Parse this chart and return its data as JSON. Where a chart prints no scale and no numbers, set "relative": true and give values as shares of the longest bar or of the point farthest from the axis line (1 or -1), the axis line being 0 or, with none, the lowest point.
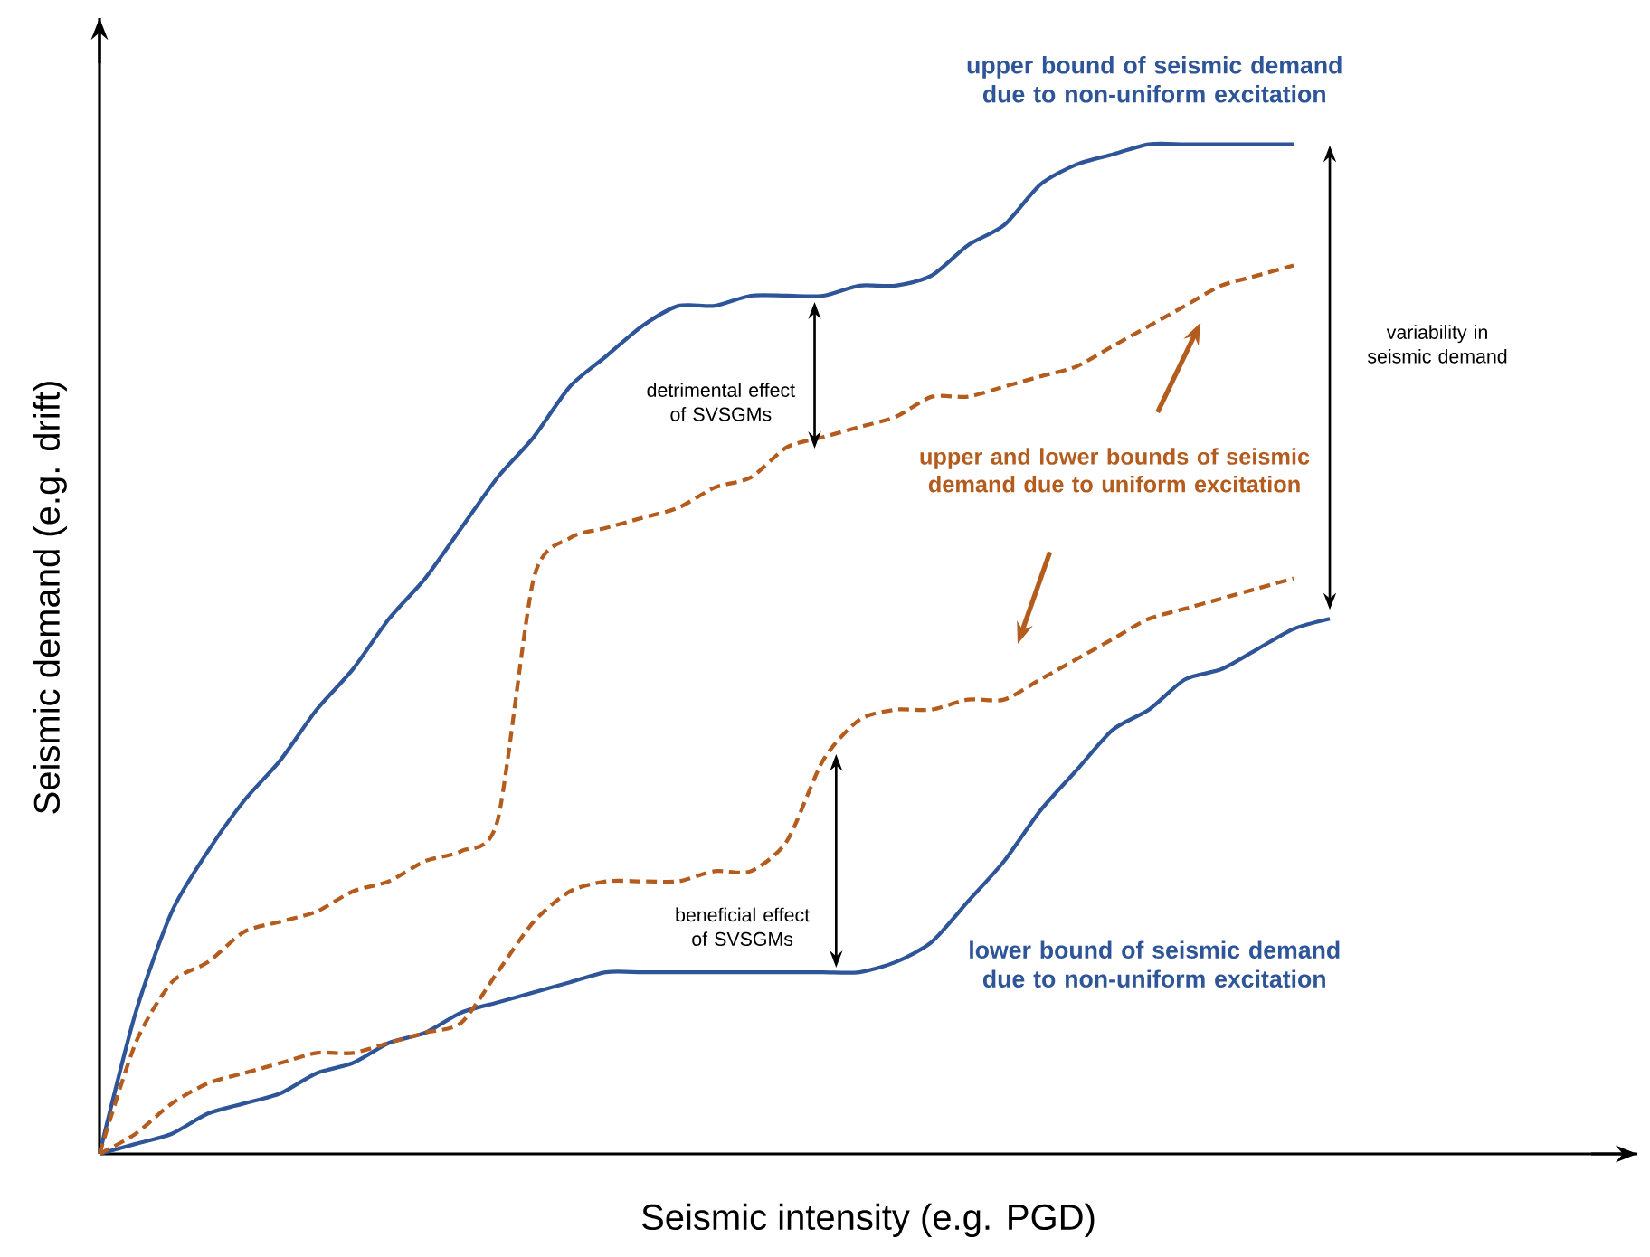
{
  "chart_data": {
    "type": "line",
    "relative": true,
    "xlabel": "Seismic intensity (e.g. PGD)",
    "ylabel": "Seismic demand (e.g. drift)",
    "categories": [
      null,
      null,
      null,
      null,
      null,
      null,
      null,
      null,
      null,
      null,
      null,
      null,
      null,
      null,
      null,
      null,
      null,
      null,
      null,
      null,
      null,
      null,
      null,
      null,
      null,
      null,
      null,
      null,
      null,
      null,
      null,
      null,
      null,
      null,
      null
    ],
    "series": [
      {
        "color": "#2e5597",
        "line_style": "solid",
        "values": [
          0,
          0.14,
          0.24,
          0.3,
          0.35,
          0.39,
          0.44,
          0.48,
          0.53,
          0.57,
          0.62,
          0.67,
          0.71,
          0.76,
          0.79,
          0.82,
          0.84,
          0.84,
          0.85,
          0.85,
          0.85,
          0.86,
          0.86,
          0.87,
          0.9,
          0.92,
          0.96,
          0.98,
          0.99,
          1.0,
          1.0,
          1.0,
          1.0,
          1.0,
          null
        ]
      },
      {
        "color": "#2e5597",
        "line_style": "solid",
        "values": [
          0,
          0.01,
          0.02,
          0.04,
          0.05,
          0.06,
          0.08,
          0.09,
          0.11,
          0.12,
          0.14,
          0.15,
          0.16,
          0.17,
          0.18,
          0.18,
          0.18,
          0.18,
          0.18,
          0.18,
          0.18,
          0.18,
          0.19,
          0.21,
          0.25,
          0.29,
          0.34,
          0.38,
          0.42,
          0.44,
          0.47,
          0.48,
          0.5,
          0.52,
          0.53
        ]
      },
      {
        "color": "#b35c1e",
        "line_style": "dashed",
        "values": [
          0,
          0.11,
          0.17,
          0.19,
          0.22,
          0.23,
          0.24,
          0.26,
          0.27,
          0.29,
          0.3,
          0.33,
          0.57,
          0.61,
          0.62,
          0.63,
          0.64,
          0.66,
          0.67,
          0.7,
          0.71,
          0.72,
          0.73,
          0.75,
          0.75,
          0.76,
          0.77,
          0.78,
          0.8,
          0.82,
          0.84,
          0.86,
          0.87,
          0.88,
          null
        ]
      },
      {
        "color": "#b35c1e",
        "line_style": "dashed",
        "values": [
          0,
          0.02,
          0.05,
          0.07,
          0.08,
          0.09,
          0.1,
          0.1,
          0.11,
          0.12,
          0.13,
          0.18,
          0.23,
          0.26,
          0.27,
          0.27,
          0.27,
          0.28,
          0.28,
          0.31,
          0.39,
          0.43,
          0.44,
          0.44,
          0.45,
          0.45,
          0.47,
          0.49,
          0.51,
          0.53,
          0.54,
          0.55,
          0.56,
          0.57,
          null
        ]
      }
    ],
    "annotations": [
      "upper bound of seismic demand due to non-uniform excitation",
      "lower bound of seismic demand due to non-uniform excitation",
      "upper and lower bounds of seismic demand due to uniform excitation",
      "variability in seismic demand",
      "detrimental effect of SVSGMs",
      "beneficial effect of SVSGMs"
    ]
  }
}
